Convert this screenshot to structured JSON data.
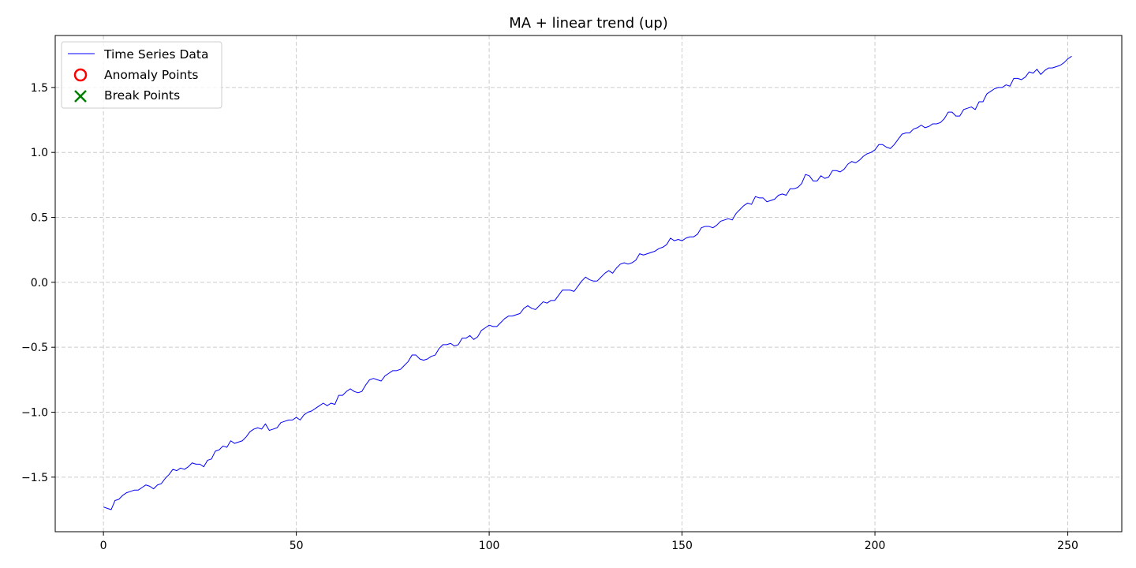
{
  "chart_data": {
    "type": "line",
    "title": "MA + linear trend (up)",
    "xlabel": "",
    "ylabel": "",
    "xlim": [
      -12.5,
      264
    ],
    "ylim": [
      -1.92,
      1.9
    ],
    "x_ticks": [
      0,
      50,
      100,
      150,
      200,
      250
    ],
    "x_tick_labels": [
      "0",
      "50",
      "100",
      "150",
      "200",
      "250"
    ],
    "y_ticks": [
      -1.5,
      -1.0,
      -0.5,
      0.0,
      0.5,
      1.0,
      1.5
    ],
    "y_tick_labels": [
      "−1.5",
      "−1.0",
      "−0.5",
      "0.0",
      "0.5",
      "1.0",
      "1.5"
    ],
    "grid": true,
    "legend_position": "top-left",
    "legend": [
      {
        "label": "Time Series Data",
        "marker": "line",
        "color": "#0000ff"
      },
      {
        "label": "Anomaly Points",
        "marker": "circle",
        "color": "#ff0000"
      },
      {
        "label": "Break Points",
        "marker": "x",
        "color": "#008000"
      }
    ],
    "series": [
      {
        "name": "Time Series Data",
        "color": "#0000ff",
        "x_start": 0,
        "x_step": 1,
        "values": [
          -1.73,
          -1.74,
          -1.75,
          -1.68,
          -1.67,
          -1.64,
          -1.62,
          -1.61,
          -1.6,
          -1.6,
          -1.58,
          -1.56,
          -1.57,
          -1.59,
          -1.56,
          -1.55,
          -1.51,
          -1.48,
          -1.44,
          -1.45,
          -1.43,
          -1.44,
          -1.42,
          -1.39,
          -1.4,
          -1.4,
          -1.42,
          -1.37,
          -1.36,
          -1.3,
          -1.29,
          -1.26,
          -1.27,
          -1.22,
          -1.24,
          -1.23,
          -1.22,
          -1.19,
          -1.15,
          -1.13,
          -1.12,
          -1.13,
          -1.09,
          -1.14,
          -1.13,
          -1.12,
          -1.08,
          -1.07,
          -1.06,
          -1.06,
          -1.04,
          -1.06,
          -1.02,
          -1.0,
          -0.99,
          -0.97,
          -0.95,
          -0.93,
          -0.95,
          -0.93,
          -0.94,
          -0.87,
          -0.87,
          -0.84,
          -0.82,
          -0.84,
          -0.85,
          -0.84,
          -0.79,
          -0.75,
          -0.74,
          -0.75,
          -0.76,
          -0.72,
          -0.7,
          -0.68,
          -0.68,
          -0.67,
          -0.64,
          -0.61,
          -0.56,
          -0.56,
          -0.59,
          -0.6,
          -0.59,
          -0.57,
          -0.56,
          -0.51,
          -0.48,
          -0.48,
          -0.47,
          -0.49,
          -0.48,
          -0.43,
          -0.43,
          -0.41,
          -0.44,
          -0.42,
          -0.37,
          -0.35,
          -0.33,
          -0.34,
          -0.34,
          -0.31,
          -0.28,
          -0.26,
          -0.26,
          -0.25,
          -0.24,
          -0.2,
          -0.18,
          -0.2,
          -0.21,
          -0.18,
          -0.15,
          -0.16,
          -0.14,
          -0.14,
          -0.1,
          -0.06,
          -0.06,
          -0.06,
          -0.07,
          -0.03,
          0.01,
          0.04,
          0.02,
          0.01,
          0.01,
          0.04,
          0.07,
          0.09,
          0.07,
          0.11,
          0.14,
          0.15,
          0.14,
          0.15,
          0.17,
          0.22,
          0.21,
          0.22,
          0.23,
          0.24,
          0.26,
          0.27,
          0.29,
          0.34,
          0.32,
          0.33,
          0.32,
          0.34,
          0.35,
          0.35,
          0.37,
          0.42,
          0.43,
          0.43,
          0.42,
          0.44,
          0.47,
          0.48,
          0.49,
          0.48,
          0.53,
          0.56,
          0.59,
          0.61,
          0.6,
          0.66,
          0.65,
          0.65,
          0.62,
          0.63,
          0.64,
          0.67,
          0.68,
          0.67,
          0.72,
          0.72,
          0.73,
          0.76,
          0.83,
          0.82,
          0.78,
          0.78,
          0.82,
          0.8,
          0.81,
          0.86,
          0.86,
          0.85,
          0.87,
          0.91,
          0.93,
          0.92,
          0.94,
          0.97,
          0.99,
          1.0,
          1.02,
          1.06,
          1.06,
          1.04,
          1.03,
          1.06,
          1.1,
          1.14,
          1.15,
          1.15,
          1.18,
          1.19,
          1.21,
          1.19,
          1.2,
          1.22,
          1.22,
          1.23,
          1.26,
          1.31,
          1.31,
          1.28,
          1.28,
          1.33,
          1.34,
          1.35,
          1.33,
          1.39,
          1.39,
          1.45,
          1.47,
          1.49,
          1.5,
          1.5,
          1.52,
          1.51,
          1.57,
          1.57,
          1.56,
          1.58,
          1.62,
          1.61,
          1.64,
          1.6,
          1.63,
          1.65,
          1.65,
          1.66,
          1.67,
          1.69,
          1.72,
          1.74
        ]
      }
    ]
  }
}
